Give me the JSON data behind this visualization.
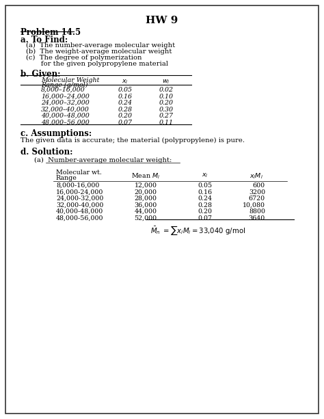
{
  "title": "HW 9",
  "problem": "Problem 14.5",
  "section_a_title": "a. To Find:",
  "section_a_items": [
    "(a)  The number-average molecular weight",
    "(b)  The weight-average molecular weight",
    "(c)  The degree of polymerization",
    "       for the given polypropylene material"
  ],
  "section_b_title": "b. Given:",
  "table_rows": [
    [
      "8,000–16,000",
      "0.05",
      "0.02"
    ],
    [
      "16,000–24,000",
      "0.16",
      "0.10"
    ],
    [
      "24,000–32,000",
      "0.24",
      "0.20"
    ],
    [
      "32,000–40,000",
      "0.28",
      "0.30"
    ],
    [
      "40,000–48,000",
      "0.20",
      "0.27"
    ],
    [
      "48,000–56,000",
      "0.07",
      "0.11"
    ]
  ],
  "section_c_title": "c. Assumptions:",
  "section_c_text": "The given data is accurate; the material (polypropylene) is pure.",
  "section_d_title": "d. Solution:",
  "sol_table_rows": [
    [
      "8,000-16,000",
      "12,000",
      "0.05",
      "600"
    ],
    [
      "16,000-24,000",
      "20,000",
      "0.16",
      "3200"
    ],
    [
      "24,000-32,000",
      "28,000",
      "0.24",
      "6720"
    ],
    [
      "32,000-40,000",
      "36,000",
      "0.28",
      "10,080"
    ],
    [
      "40,000-48,000",
      "44,000",
      "0.20",
      "8800"
    ],
    [
      "48,000-56,000",
      "52,000",
      "0.07",
      "3640"
    ]
  ],
  "bg_color": "#ffffff",
  "border_color": "#333333"
}
